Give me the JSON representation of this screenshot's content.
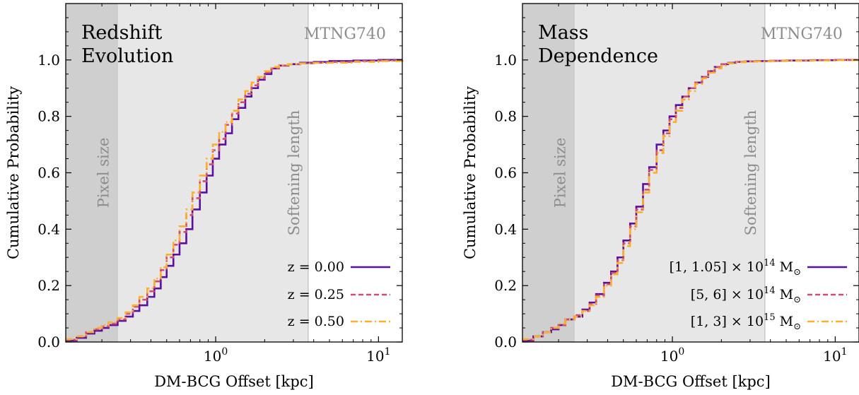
{
  "colors": {
    "z000": "#5a0fa0",
    "z025": "#cc4c74",
    "z050": "#fbb02d",
    "pixel_band": "#cfcfcf",
    "softening_band": "#e7e7e7",
    "annotation_text": "#8c8c8c"
  },
  "chart_data": [
    {
      "type": "line",
      "style": "step",
      "panel": "left",
      "title": "Redshift\nEvolution",
      "title_lines": [
        "Redshift",
        "Evolution"
      ],
      "simulation_label": "MTNG740",
      "xlabel": "DM-BCG Offset [kpc]",
      "ylabel": "Cumulative Probability",
      "xscale": "log",
      "xlim": [
        0.12,
        14
      ],
      "ylim": [
        0.0,
        1.2
      ],
      "yticks": [
        0.0,
        0.2,
        0.4,
        0.6,
        0.8,
        1.0
      ],
      "ytick_labels": [
        "0.0",
        "0.2",
        "0.4",
        "0.6",
        "0.8",
        "1.0"
      ],
      "xtick_labels": [
        {
          "value": 1,
          "base": "10",
          "exp": "0"
        },
        {
          "value": 10,
          "base": "10",
          "exp": "1"
        }
      ],
      "shaded_regions": [
        {
          "label": "Pixel size",
          "x_from": 0.12,
          "x_to": 0.25
        },
        {
          "label": "Softening length",
          "x_from": 0.25,
          "x_to": 3.7
        }
      ],
      "legend_position": "lower-right",
      "legend_entries": [
        {
          "label": "z = 0.00",
          "series": "z000",
          "dash": "solid"
        },
        {
          "label": "z = 0.25",
          "series": "z025",
          "dash": "dashed"
        },
        {
          "label": "z = 0.50",
          "series": "z050",
          "dash": "dashdot"
        }
      ],
      "series": [
        {
          "name": "z = 0.00",
          "color": "#5a0fa0",
          "dash": "solid",
          "x": [
            0.12,
            0.14,
            0.16,
            0.18,
            0.2,
            0.22,
            0.25,
            0.28,
            0.31,
            0.34,
            0.38,
            0.42,
            0.46,
            0.5,
            0.55,
            0.6,
            0.66,
            0.72,
            0.8,
            0.88,
            0.96,
            1.05,
            1.15,
            1.26,
            1.38,
            1.52,
            1.66,
            1.82,
            2.0,
            2.2,
            2.45,
            2.8,
            3.3,
            4.0,
            5.0,
            7.0,
            10.0,
            14.0
          ],
          "y": [
            0.005,
            0.015,
            0.03,
            0.04,
            0.05,
            0.06,
            0.075,
            0.09,
            0.11,
            0.13,
            0.16,
            0.19,
            0.23,
            0.27,
            0.31,
            0.35,
            0.4,
            0.47,
            0.53,
            0.59,
            0.65,
            0.7,
            0.74,
            0.79,
            0.83,
            0.87,
            0.9,
            0.93,
            0.95,
            0.97,
            0.98,
            0.985,
            0.99,
            0.993,
            0.996,
            0.998,
            1.0,
            1.0
          ]
        },
        {
          "name": "z = 0.25",
          "color": "#cc4c74",
          "dash": "dashed",
          "x": [
            0.12,
            0.14,
            0.16,
            0.18,
            0.2,
            0.22,
            0.25,
            0.28,
            0.31,
            0.34,
            0.38,
            0.42,
            0.46,
            0.5,
            0.55,
            0.6,
            0.66,
            0.72,
            0.8,
            0.88,
            0.96,
            1.05,
            1.15,
            1.26,
            1.38,
            1.52,
            1.66,
            1.82,
            2.0,
            2.2,
            2.45,
            2.8,
            3.3,
            4.0,
            5.0,
            7.0,
            10.0,
            14.0
          ],
          "y": [
            0.008,
            0.02,
            0.035,
            0.045,
            0.055,
            0.065,
            0.08,
            0.1,
            0.125,
            0.15,
            0.18,
            0.215,
            0.255,
            0.3,
            0.345,
            0.39,
            0.45,
            0.51,
            0.57,
            0.63,
            0.68,
            0.72,
            0.77,
            0.81,
            0.85,
            0.88,
            0.91,
            0.935,
            0.955,
            0.97,
            0.98,
            0.985,
            0.988,
            0.99,
            0.993,
            0.996,
            0.998,
            1.0
          ]
        },
        {
          "name": "z = 0.50",
          "color": "#fbb02d",
          "dash": "dashdot",
          "x": [
            0.12,
            0.14,
            0.16,
            0.18,
            0.2,
            0.22,
            0.25,
            0.28,
            0.31,
            0.34,
            0.38,
            0.42,
            0.46,
            0.5,
            0.55,
            0.6,
            0.66,
            0.72,
            0.8,
            0.88,
            0.96,
            1.05,
            1.15,
            1.26,
            1.38,
            1.52,
            1.66,
            1.82,
            2.0,
            2.2,
            2.45,
            2.8,
            3.3,
            4.0,
            5.0,
            7.0,
            10.0,
            14.0
          ],
          "y": [
            0.01,
            0.02,
            0.035,
            0.05,
            0.06,
            0.07,
            0.085,
            0.105,
            0.13,
            0.16,
            0.19,
            0.225,
            0.265,
            0.31,
            0.36,
            0.41,
            0.47,
            0.53,
            0.59,
            0.65,
            0.7,
            0.745,
            0.78,
            0.82,
            0.86,
            0.89,
            0.92,
            0.94,
            0.96,
            0.975,
            0.982,
            0.985,
            0.988,
            0.99,
            0.99,
            0.993,
            0.996,
            1.0
          ]
        }
      ]
    },
    {
      "type": "line",
      "style": "step",
      "panel": "right",
      "title": "Mass\nDependence",
      "title_lines": [
        "Mass",
        "Dependence"
      ],
      "simulation_label": "MTNG740",
      "xlabel": "DM-BCG Offset [kpc]",
      "ylabel": "Cumulative Probability",
      "xscale": "log",
      "xlim": [
        0.12,
        14
      ],
      "ylim": [
        0.0,
        1.2
      ],
      "yticks": [
        0.0,
        0.2,
        0.4,
        0.6,
        0.8,
        1.0
      ],
      "ytick_labels": [
        "0.0",
        "0.2",
        "0.4",
        "0.6",
        "0.8",
        "1.0"
      ],
      "xtick_labels": [
        {
          "value": 1,
          "base": "10",
          "exp": "0"
        },
        {
          "value": 10,
          "base": "10",
          "exp": "1"
        }
      ],
      "shaded_regions": [
        {
          "label": "Pixel size",
          "x_from": 0.12,
          "x_to": 0.25
        },
        {
          "label": "Softening length",
          "x_from": 0.25,
          "x_to": 3.7
        }
      ],
      "legend_position": "lower-right",
      "legend_entries": [
        {
          "label": "[1, 1.05] × 10",
          "exp": "14",
          "unit": " M",
          "sub": "⊙",
          "series": "m1",
          "dash": "solid"
        },
        {
          "label": "[5, 6] × 10",
          "exp": "14",
          "unit": " M",
          "sub": "⊙",
          "series": "m2",
          "dash": "dashed"
        },
        {
          "label": "[1, 3] × 10",
          "exp": "15",
          "unit": " M",
          "sub": "⊙",
          "series": "m3",
          "dash": "dashdot"
        }
      ],
      "series": [
        {
          "name": "[1, 1.05] × 10^14 M☉",
          "color": "#5a0fa0",
          "dash": "solid",
          "x": [
            0.12,
            0.14,
            0.16,
            0.18,
            0.2,
            0.22,
            0.25,
            0.28,
            0.31,
            0.34,
            0.38,
            0.42,
            0.46,
            0.5,
            0.55,
            0.6,
            0.66,
            0.72,
            0.8,
            0.88,
            0.96,
            1.05,
            1.15,
            1.26,
            1.38,
            1.52,
            1.66,
            1.82,
            2.0,
            2.2,
            2.45,
            2.8,
            3.3,
            4.0,
            5.0,
            7.0,
            10.0,
            14.0
          ],
          "y": [
            0.005,
            0.02,
            0.035,
            0.045,
            0.06,
            0.08,
            0.09,
            0.115,
            0.14,
            0.17,
            0.21,
            0.25,
            0.3,
            0.36,
            0.42,
            0.48,
            0.56,
            0.62,
            0.7,
            0.75,
            0.8,
            0.84,
            0.87,
            0.9,
            0.92,
            0.94,
            0.96,
            0.975,
            0.985,
            0.99,
            0.993,
            0.995,
            0.996,
            0.997,
            0.998,
            0.999,
            1.0,
            1.0
          ]
        },
        {
          "name": "[5, 6] × 10^14 M☉",
          "color": "#cc4c74",
          "dash": "dashed",
          "x": [
            0.12,
            0.14,
            0.16,
            0.18,
            0.2,
            0.22,
            0.25,
            0.28,
            0.31,
            0.34,
            0.38,
            0.42,
            0.46,
            0.5,
            0.55,
            0.6,
            0.66,
            0.72,
            0.8,
            0.88,
            0.96,
            1.05,
            1.15,
            1.26,
            1.38,
            1.52,
            1.66,
            1.82,
            2.0,
            2.2,
            2.45,
            2.8,
            3.3,
            4.0,
            5.0,
            7.0,
            10.0,
            14.0
          ],
          "y": [
            0.008,
            0.02,
            0.035,
            0.05,
            0.06,
            0.08,
            0.095,
            0.11,
            0.135,
            0.165,
            0.205,
            0.245,
            0.29,
            0.35,
            0.41,
            0.47,
            0.54,
            0.61,
            0.68,
            0.74,
            0.79,
            0.83,
            0.87,
            0.9,
            0.92,
            0.94,
            0.96,
            0.975,
            0.985,
            0.99,
            0.993,
            0.995,
            0.996,
            0.997,
            0.998,
            0.999,
            1.0,
            1.0
          ]
        },
        {
          "name": "[1, 3] × 10^15 M☉",
          "color": "#fbb02d",
          "dash": "dashdot",
          "x": [
            0.12,
            0.14,
            0.16,
            0.18,
            0.2,
            0.22,
            0.25,
            0.28,
            0.31,
            0.34,
            0.38,
            0.42,
            0.46,
            0.5,
            0.55,
            0.6,
            0.66,
            0.72,
            0.8,
            0.88,
            0.96,
            1.05,
            1.15,
            1.26,
            1.38,
            1.52,
            1.66,
            1.82,
            2.0,
            2.2,
            2.45,
            2.8,
            3.3,
            4.0,
            5.0,
            7.0,
            10.0,
            14.0
          ],
          "y": [
            0.01,
            0.02,
            0.035,
            0.05,
            0.065,
            0.08,
            0.09,
            0.11,
            0.13,
            0.16,
            0.2,
            0.24,
            0.28,
            0.34,
            0.4,
            0.46,
            0.53,
            0.6,
            0.67,
            0.73,
            0.78,
            0.82,
            0.86,
            0.89,
            0.915,
            0.935,
            0.955,
            0.97,
            0.98,
            0.988,
            0.992,
            0.994,
            0.995,
            0.996,
            0.997,
            0.998,
            0.999,
            1.0
          ]
        }
      ]
    }
  ]
}
